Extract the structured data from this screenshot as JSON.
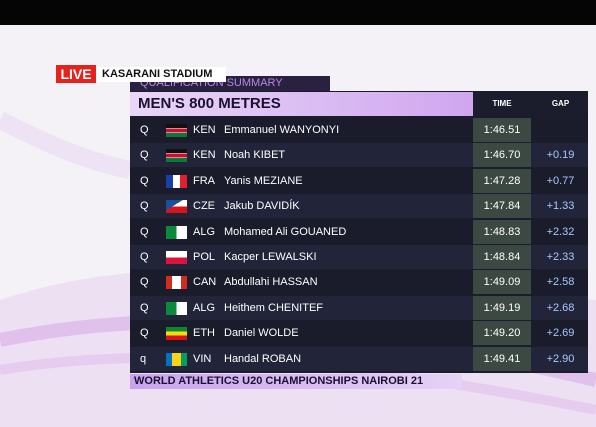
{
  "header": {
    "live": "LIVE",
    "venue": "KASARANI STADIUM",
    "subtitle": "QUALIFICATION SUMMARY",
    "title": "MEN'S 800 METRES",
    "time_label": "TIME",
    "gap_label": "GAP"
  },
  "table": {
    "rows": [
      {
        "qualifier": "Q",
        "country": "KEN",
        "athlete": "Emmanuel WANYONYI",
        "time": "1:46.51"
      },
      {
        "qualifier": "Q",
        "country": "KEN",
        "athlete": "Noah KIBET",
        "time": "1:46.70",
        "gap": "+0.19"
      },
      {
        "qualifier": "Q",
        "country": "FRA",
        "athlete": "Yanis MEZIANE",
        "time": "1:47.28",
        "gap": "+0.77"
      },
      {
        "qualifier": "Q",
        "country": "CZE",
        "athlete": "Jakub DAVIDÍK",
        "time": "1:47.84",
        "gap": "+1.33"
      },
      {
        "qualifier": "Q",
        "country": "ALG",
        "athlete": "Mohamed Ali GOUANED",
        "time": "1:48.83",
        "gap": "+2.32"
      },
      {
        "qualifier": "Q",
        "country": "POL",
        "athlete": "Kacper LEWALSKI",
        "time": "1:48.84",
        "gap": "+2.33"
      },
      {
        "qualifier": "Q",
        "country": "CAN",
        "athlete": "Abdullahi HASSAN",
        "time": "1:49.09",
        "gap": "+2.58"
      },
      {
        "qualifier": "Q",
        "country": "ALG",
        "athlete": "Heithem CHENITEF",
        "time": "1:49.19",
        "gap": "+2.68"
      },
      {
        "qualifier": "Q",
        "country": "ETH",
        "athlete": "Daniel WOLDE",
        "time": "1:49.20",
        "gap": "+2.69"
      },
      {
        "qualifier": "q",
        "country": "VIN",
        "athlete": "Handal ROBAN",
        "time": "1:49.41",
        "gap": "+2.90"
      }
    ]
  },
  "footer": {
    "event": "WORLD ATHLETICS U20 CHAMPIONSHIPS NAIROBI 21"
  }
}
